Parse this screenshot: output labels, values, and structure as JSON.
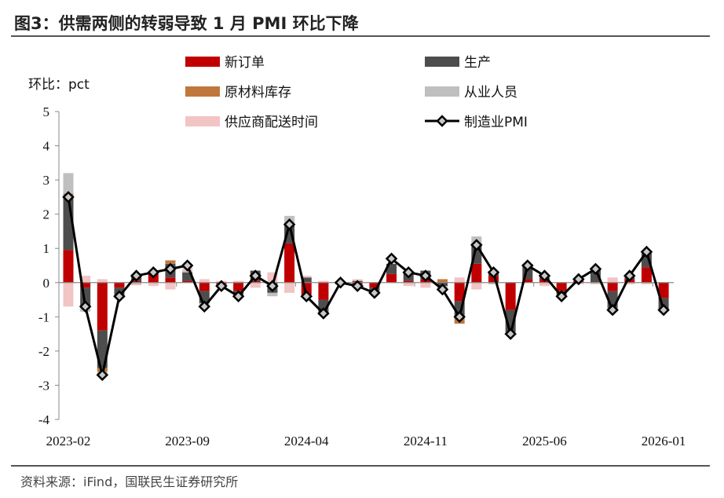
{
  "title": "图3：供需两侧的转弱导致 1 月 PMI 环比下降",
  "source": "资料来源：iFind，国联民生证券研究所",
  "chart_data": {
    "type": "bar",
    "stacked": true,
    "ylabel": "环比：pct",
    "ylim": [
      -4,
      5
    ],
    "yticks": [
      -4,
      -3,
      -2,
      -1,
      0,
      1,
      2,
      3,
      4,
      5
    ],
    "xtick_labels": [
      "2023-02",
      "2023-09",
      "2024-04",
      "2024-11",
      "2025-06",
      "2026-01"
    ],
    "legend_placement": "top",
    "categories": [
      "2023-02",
      "2023-03",
      "2023-04",
      "2023-05",
      "2023-06",
      "2023-07",
      "2023-08",
      "2023-09",
      "2023-10",
      "2023-11",
      "2023-12",
      "2024-01",
      "2024-02",
      "2024-03",
      "2024-04",
      "2024-05",
      "2024-06",
      "2024-07",
      "2024-08",
      "2024-09",
      "2024-10",
      "2024-11",
      "2024-12",
      "2025-01",
      "2025-02",
      "2025-03",
      "2025-04",
      "2025-05",
      "2025-06",
      "2025-07",
      "2025-08",
      "2025-09",
      "2025-10",
      "2025-11",
      "2025-12",
      "2026-01"
    ],
    "series": [
      {
        "name": "新订单",
        "color": "#c00000",
        "values": [
          0.95,
          -0.15,
          -1.4,
          -0.15,
          0.05,
          0.25,
          0.15,
          0.05,
          -0.25,
          -0.05,
          -0.25,
          0.05,
          0,
          1.15,
          -0.35,
          -0.5,
          0,
          -0.05,
          -0.15,
          0.25,
          0.05,
          0.1,
          0,
          -0.55,
          0.55,
          0.2,
          -0.8,
          0.1,
          0.1,
          -0.25,
          0.05,
          0,
          -0.25,
          0.1,
          0.45,
          -0.45
        ]
      },
      {
        "name": "生产",
        "color": "#4d4d4d",
        "values": [
          1.6,
          -0.55,
          -1.1,
          -0.25,
          0.15,
          0.05,
          0.4,
          0.25,
          -0.35,
          -0.05,
          -0.1,
          0.3,
          -0.3,
          0.55,
          0.15,
          -0.4,
          -0.05,
          0.05,
          -0.1,
          0.3,
          0.25,
          0.25,
          -0.1,
          -0.45,
          0.6,
          0.1,
          -0.65,
          0.4,
          0.05,
          -0.1,
          0.05,
          0.4,
          -0.5,
          0.05,
          0.45,
          -0.35
        ]
      },
      {
        "name": "原材料库存",
        "color": "#c0773c",
        "values": [
          0.05,
          0,
          -0.1,
          -0.05,
          0,
          0,
          0.1,
          0,
          0,
          0,
          0,
          0,
          0,
          0.05,
          0,
          -0.05,
          0,
          0,
          -0.05,
          0,
          0,
          0,
          0.1,
          -0.2,
          0,
          0,
          0,
          0.05,
          0,
          0,
          0,
          0,
          0,
          0,
          0,
          0
        ]
      },
      {
        "name": "从业人员",
        "color": "#bfbfbf",
        "values": [
          0.6,
          -0.15,
          -0.1,
          0,
          -0.05,
          0,
          0,
          0.05,
          -0.05,
          0,
          -0.05,
          0,
          -0.1,
          0.2,
          -0.1,
          0,
          0,
          0,
          0,
          0,
          0,
          0,
          -0.05,
          0,
          0.2,
          -0.05,
          -0.05,
          0,
          0,
          -0.05,
          0,
          0,
          -0.1,
          0,
          0,
          -0.05
        ]
      },
      {
        "name": "供应商配送时间",
        "color": "#f2c4c4",
        "values": [
          -0.7,
          0.2,
          0.1,
          0,
          -0.03,
          -0.1,
          -0.2,
          0.1,
          0.1,
          0.05,
          0.05,
          -0.15,
          0.3,
          -0.3,
          0.05,
          0.05,
          0.05,
          0.05,
          0,
          0,
          -0.1,
          -0.15,
          0,
          0.15,
          -0.2,
          0,
          0,
          0,
          -0.1,
          0,
          -0.05,
          -0.05,
          0.15,
          -0.05,
          -0.05,
          0
        ]
      }
    ],
    "line": {
      "name": "制造业PMI",
      "color": "#000000",
      "marker": "diamond",
      "marker_color": "#c8c8c8",
      "values": [
        2.5,
        -0.7,
        -2.7,
        -0.4,
        0.2,
        0.3,
        0.4,
        0.5,
        -0.7,
        -0.1,
        -0.4,
        0.2,
        -0.1,
        1.7,
        -0.4,
        -0.9,
        0.0,
        -0.1,
        -0.3,
        0.7,
        0.3,
        0.2,
        -0.2,
        -1.0,
        1.1,
        0.3,
        -1.5,
        0.5,
        0.2,
        -0.4,
        0.1,
        0.4,
        -0.8,
        0.2,
        0.9,
        -0.8
      ]
    }
  }
}
